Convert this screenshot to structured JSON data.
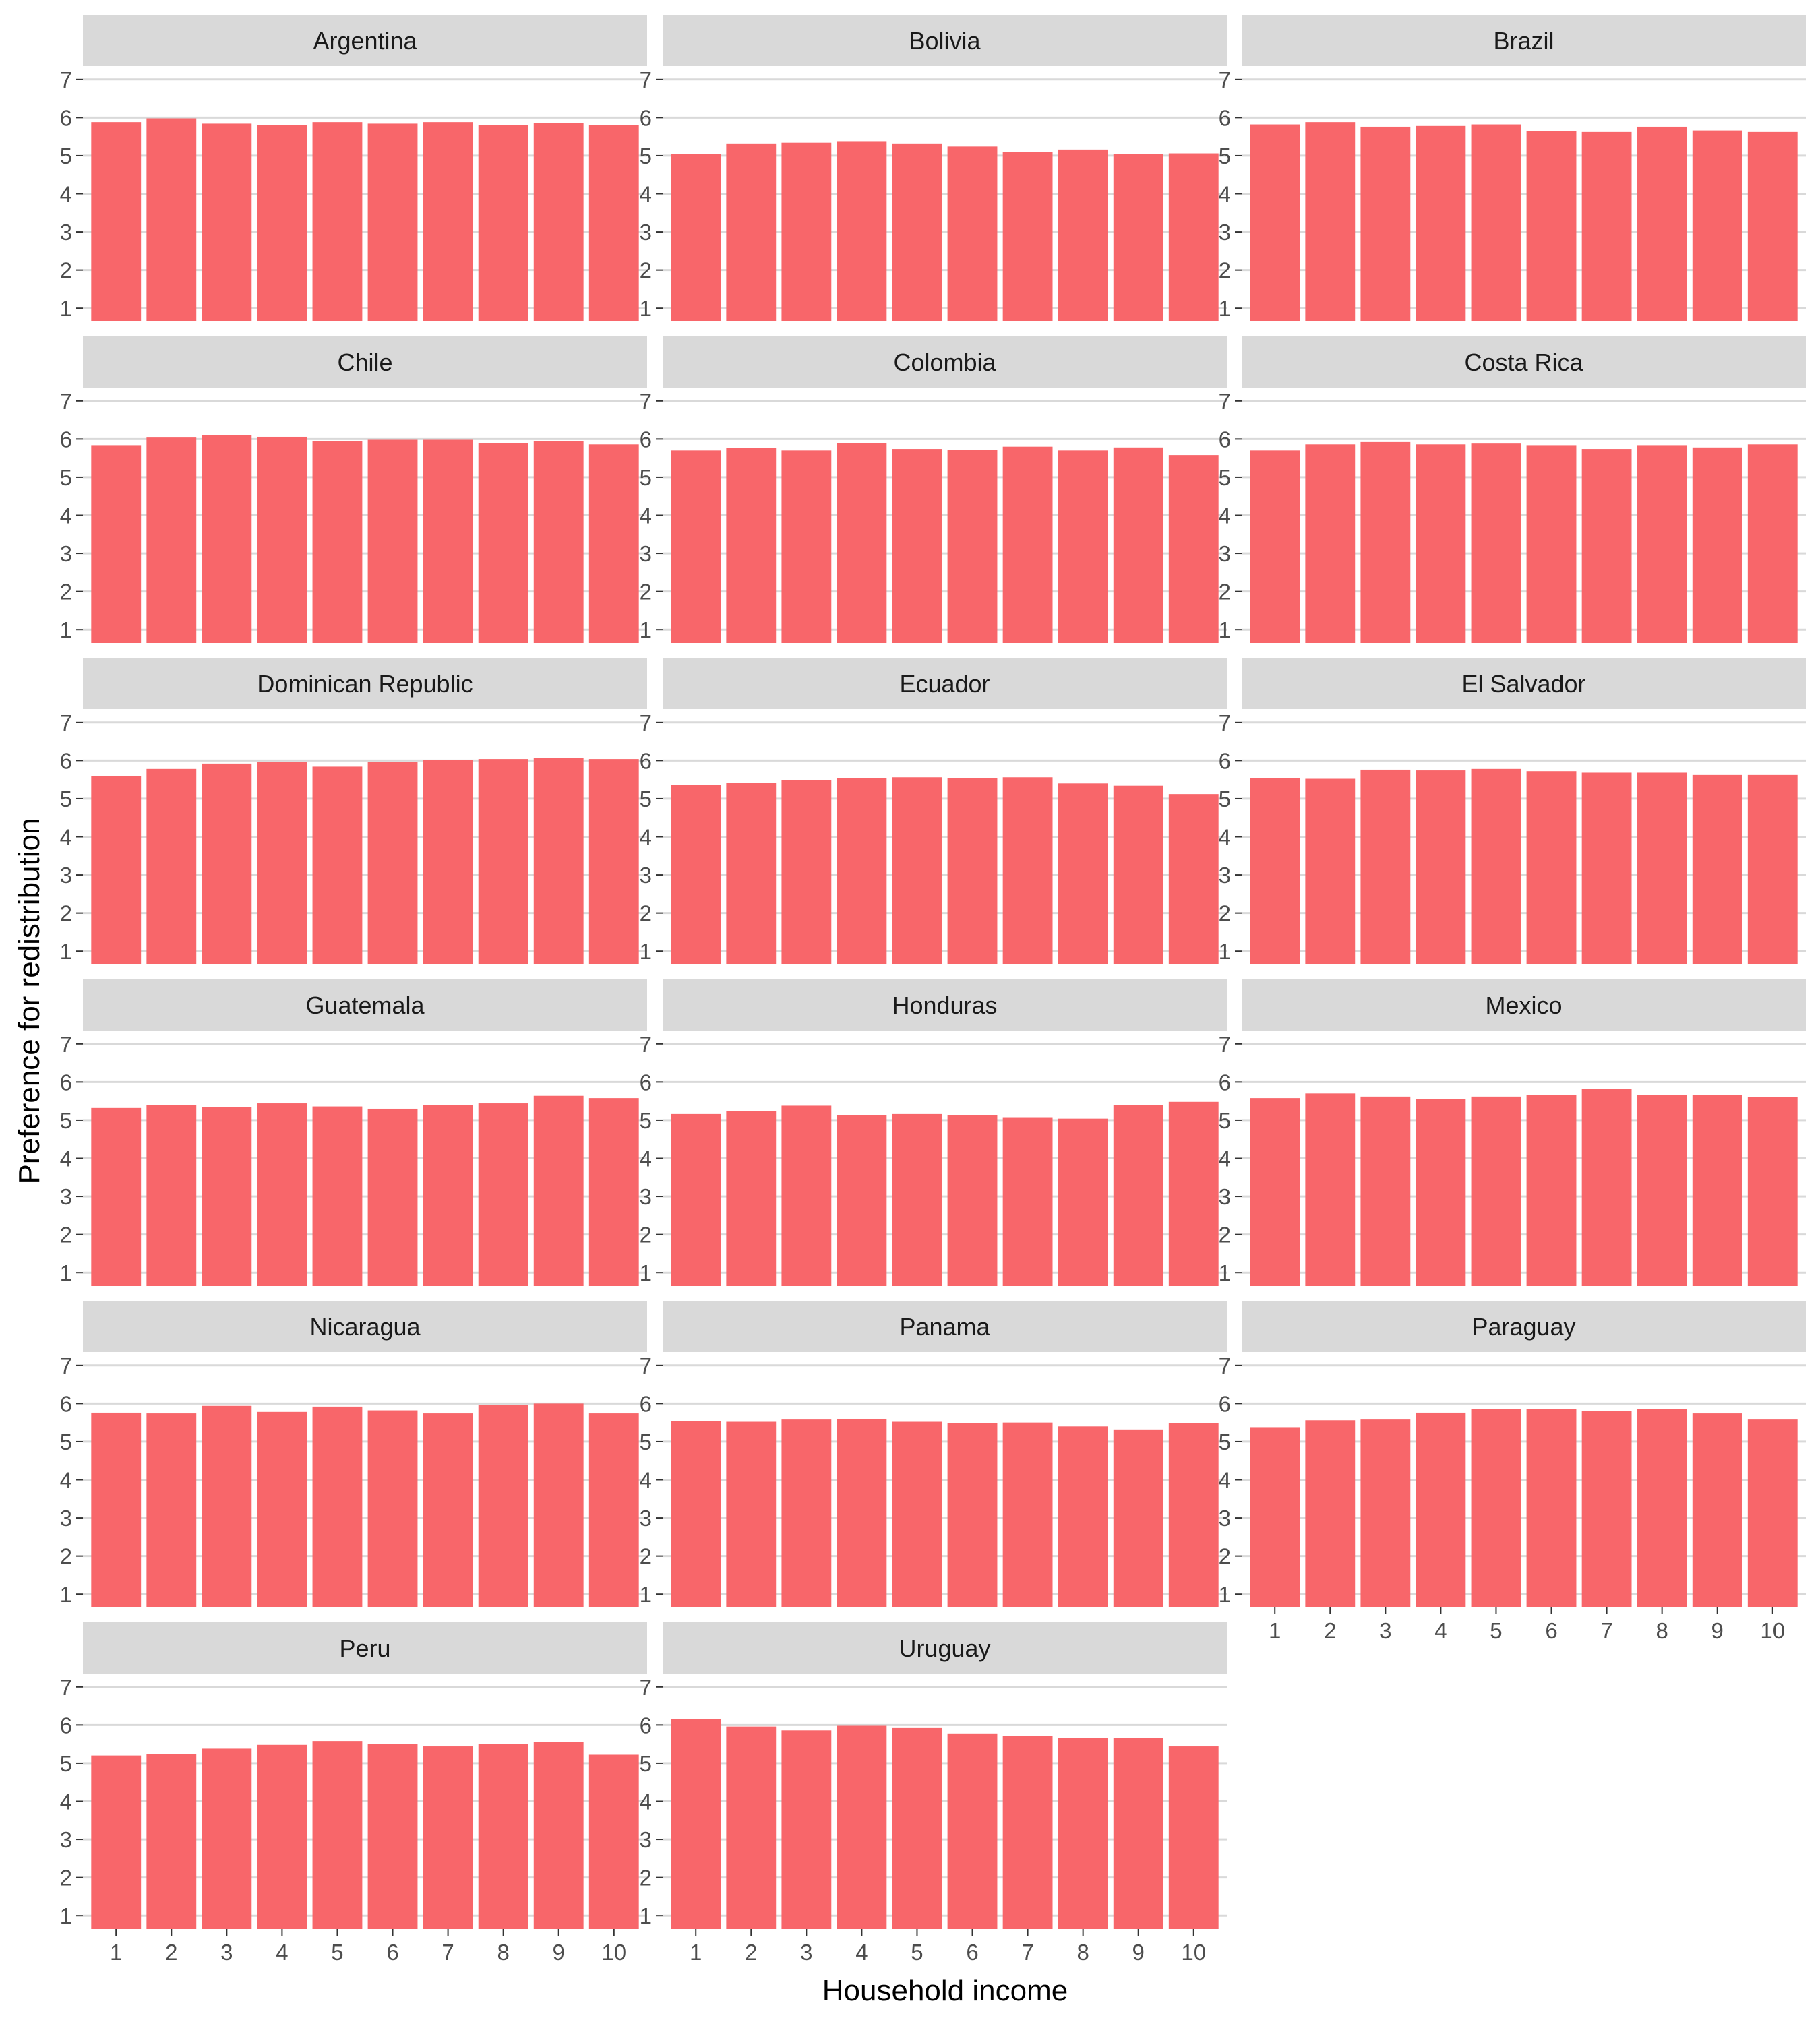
{
  "chart_data": {
    "type": "bar",
    "facet_layout": "wrap",
    "facet_columns": 3,
    "xlabel": "Household income",
    "ylabel": "Preference for redistribution",
    "categories": [
      "1",
      "2",
      "3",
      "4",
      "5",
      "6",
      "7",
      "8",
      "9",
      "10"
    ],
    "yticks": [
      "1",
      "2",
      "3",
      "4",
      "5",
      "6",
      "7"
    ],
    "ylim": [
      0.65,
      7.35
    ],
    "bar_base": 0.65,
    "bar_color": "#F8666A",
    "strip_color": "#D9D9D9",
    "grid_color": "#D9D9D9",
    "grid": true,
    "legend": "none",
    "panels": [
      {
        "name": "Argentina",
        "values": [
          5.88,
          5.98,
          5.84,
          5.8,
          5.88,
          5.84,
          5.88,
          5.8,
          5.86,
          5.8
        ]
      },
      {
        "name": "Bolivia",
        "values": [
          5.04,
          5.32,
          5.34,
          5.38,
          5.32,
          5.24,
          5.1,
          5.16,
          5.04,
          5.06
        ]
      },
      {
        "name": "Brazil",
        "values": [
          5.82,
          5.88,
          5.76,
          5.78,
          5.82,
          5.64,
          5.62,
          5.76,
          5.66,
          5.62
        ]
      },
      {
        "name": "Chile",
        "values": [
          5.84,
          6.04,
          6.1,
          6.06,
          5.94,
          5.98,
          5.98,
          5.9,
          5.94,
          5.86
        ]
      },
      {
        "name": "Colombia",
        "values": [
          5.7,
          5.76,
          5.7,
          5.9,
          5.74,
          5.72,
          5.8,
          5.7,
          5.78,
          5.58
        ]
      },
      {
        "name": "Costa Rica",
        "values": [
          5.7,
          5.86,
          5.92,
          5.86,
          5.88,
          5.84,
          5.74,
          5.84,
          5.78,
          5.86
        ]
      },
      {
        "name": "Dominican Republic",
        "values": [
          5.6,
          5.78,
          5.92,
          5.96,
          5.84,
          5.96,
          6.02,
          6.04,
          6.06,
          6.04
        ]
      },
      {
        "name": "Ecuador",
        "values": [
          5.36,
          5.42,
          5.48,
          5.54,
          5.56,
          5.54,
          5.56,
          5.4,
          5.34,
          5.12
        ]
      },
      {
        "name": "El Salvador",
        "values": [
          5.54,
          5.52,
          5.76,
          5.74,
          5.78,
          5.72,
          5.68,
          5.68,
          5.62,
          5.62
        ]
      },
      {
        "name": "Guatemala",
        "values": [
          5.32,
          5.4,
          5.34,
          5.44,
          5.36,
          5.3,
          5.4,
          5.44,
          5.64,
          5.58
        ]
      },
      {
        "name": "Honduras",
        "values": [
          5.16,
          5.24,
          5.38,
          5.14,
          5.16,
          5.14,
          5.06,
          5.04,
          5.4,
          5.48
        ]
      },
      {
        "name": "Mexico",
        "values": [
          5.58,
          5.7,
          5.62,
          5.56,
          5.62,
          5.66,
          5.82,
          5.66,
          5.66,
          5.6
        ]
      },
      {
        "name": "Nicaragua",
        "values": [
          5.76,
          5.74,
          5.94,
          5.78,
          5.92,
          5.82,
          5.74,
          5.96,
          6.0,
          5.74
        ]
      },
      {
        "name": "Panama",
        "values": [
          5.54,
          5.52,
          5.58,
          5.6,
          5.52,
          5.48,
          5.5,
          5.4,
          5.32,
          5.48
        ]
      },
      {
        "name": "Paraguay",
        "values": [
          5.38,
          5.56,
          5.58,
          5.76,
          5.86,
          5.86,
          5.8,
          5.86,
          5.74,
          5.58
        ]
      },
      {
        "name": "Peru",
        "values": [
          5.2,
          5.24,
          5.38,
          5.48,
          5.58,
          5.5,
          5.44,
          5.5,
          5.56,
          5.22
        ]
      },
      {
        "name": "Uruguay",
        "values": [
          6.16,
          5.96,
          5.86,
          5.98,
          5.92,
          5.78,
          5.72,
          5.66,
          5.66,
          5.44
        ]
      }
    ]
  }
}
